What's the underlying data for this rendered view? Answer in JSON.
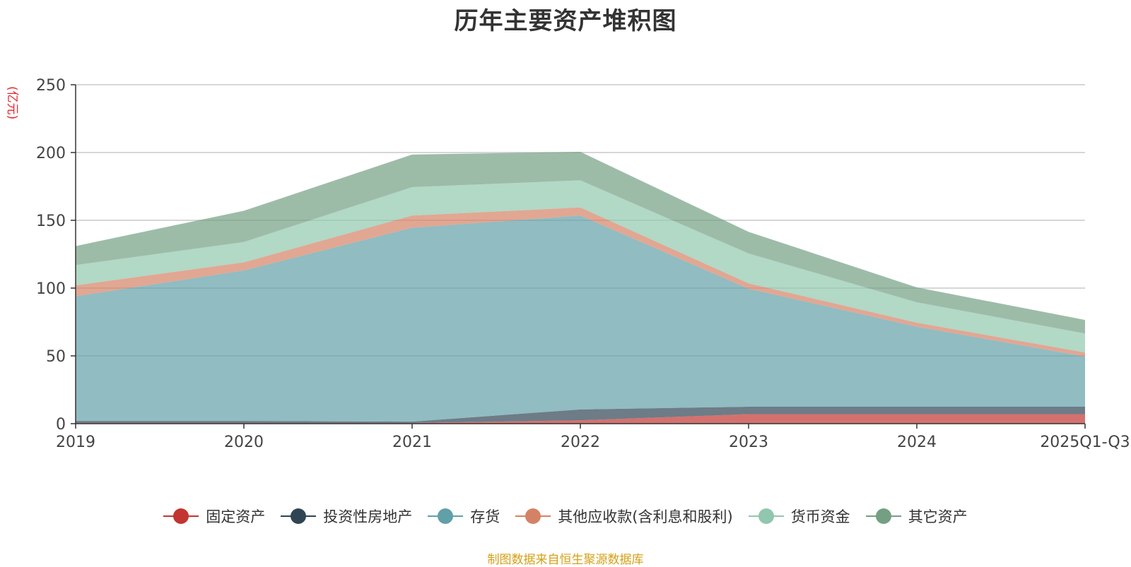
{
  "chart_data": {
    "type": "area",
    "stacked": true,
    "title": "历年主要资产堆积图",
    "ylabel": "(亿元)",
    "xlabel": "",
    "categories": [
      "2019",
      "2020",
      "2021",
      "2022",
      "2023",
      "2024",
      "2025Q1-Q3"
    ],
    "ylim": [
      0,
      250
    ],
    "yticks": [
      0,
      50,
      100,
      150,
      200,
      250
    ],
    "grid": true,
    "legend_position": "bottom",
    "series": [
      {
        "name": "固定资产",
        "color": "#c23531",
        "values": [
          0.5,
          0.5,
          0.5,
          2.5,
          7,
          7,
          7
        ]
      },
      {
        "name": "投资性房地产",
        "color": "#2f4554",
        "values": [
          1.5,
          1.5,
          1.0,
          8.0,
          5.5,
          5.5,
          5.5
        ]
      },
      {
        "name": "存货",
        "color": "#61a0a8",
        "values": [
          92,
          111,
          143,
          143,
          87,
          59,
          37
        ]
      },
      {
        "name": "其他应收款(含利息和股利)",
        "color": "#d48265",
        "values": [
          8,
          6,
          9,
          6,
          4,
          3,
          3
        ]
      },
      {
        "name": "货币资金",
        "color": "#91c7ae",
        "values": [
          15,
          15,
          21,
          20,
          22,
          15,
          14
        ]
      },
      {
        "name": "其它资产",
        "color": "#749f83",
        "values": [
          14,
          23,
          24,
          21,
          16,
          11,
          10
        ]
      }
    ]
  },
  "source_note": "制图数据来自恒生聚源数据库"
}
